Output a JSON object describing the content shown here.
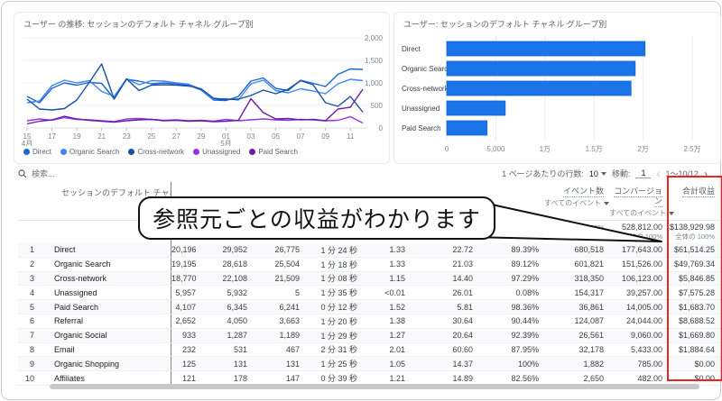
{
  "colors": {
    "bar_blue": "#1a73e8",
    "red_highlight": "#ee2222",
    "series": [
      "#1967d2",
      "#4285f4",
      "#174ea6",
      "#9334e6",
      "#681da8"
    ],
    "grid_line": "#f1f3f4",
    "axis_line": "#e0e0e0"
  },
  "callout": {
    "text": "参照元ごとの収益がわかります"
  },
  "chart_data": [
    {
      "type": "line",
      "title": "ユーザー の推移: セッションのデフォルト チャネル グループ別",
      "ylim": [
        0,
        2000
      ],
      "y_ticks": [
        "0",
        "500",
        "1,000",
        "1,500",
        "2,000"
      ],
      "x_tick_labels": [
        "15",
        "17",
        "19",
        "21",
        "23",
        "25",
        "27",
        "29",
        "01",
        "03",
        "05",
        "07",
        "09",
        "11"
      ],
      "x_tick_sublabels": {
        "0": "4月",
        "8": "5月"
      },
      "legend_position": "bottom",
      "grid": true,
      "series": [
        {
          "name": "Direct",
          "color": "#1967d2",
          "values": [
            700,
            560,
            880,
            1000,
            950,
            1010,
            990,
            650,
            1080,
            1040,
            980,
            1000,
            980,
            950,
            840,
            620,
            610,
            700,
            1040,
            1110,
            880,
            830,
            1060,
            990,
            920,
            1190,
            1310,
            1300
          ]
        },
        {
          "name": "Organic Search",
          "color": "#4285f4",
          "values": [
            560,
            600,
            940,
            1060,
            1000,
            1050,
            810,
            700,
            1090,
            960,
            1050,
            1040,
            1000,
            970,
            860,
            640,
            650,
            620,
            980,
            1060,
            830,
            780,
            870,
            820,
            760,
            980,
            1080,
            1050
          ]
        },
        {
          "name": "Cross-network",
          "color": "#174ea6",
          "values": [
            640,
            420,
            400,
            430,
            620,
            1010,
            1420,
            640,
            1090,
            830,
            950,
            960,
            950,
            930,
            870,
            660,
            630,
            640,
            720,
            840,
            760,
            860,
            1050,
            960,
            560,
            480,
            700,
            350
          ]
        },
        {
          "name": "Unassigned",
          "color": "#9334e6",
          "values": [
            160,
            200,
            170,
            230,
            190,
            180,
            160,
            140,
            200,
            210,
            190,
            170,
            180,
            160,
            170,
            150,
            190,
            160,
            180,
            200,
            180,
            170,
            190,
            180,
            160,
            170,
            250,
            110
          ]
        },
        {
          "name": "Paid Search",
          "color": "#681da8",
          "values": [
            90,
            150,
            180,
            260,
            200,
            170,
            150,
            130,
            160,
            180,
            190,
            160,
            170,
            150,
            160,
            140,
            150,
            170,
            650,
            340,
            200,
            210,
            180,
            190,
            160,
            420,
            460,
            860
          ]
        }
      ]
    },
    {
      "type": "bar",
      "orientation": "horizontal",
      "title": "ユーザー: セッションのデフォルト チャネル グループ別",
      "categories": [
        "Direct",
        "Organic Search",
        "Cross-network",
        "Unassigned",
        "Paid Search"
      ],
      "values": [
        20196,
        19195,
        18770,
        5957,
        4107
      ],
      "xlim": [
        0,
        25000
      ],
      "x_ticks": [
        "0",
        "5,000",
        "1万",
        "1.5万",
        "2万",
        "2.5万"
      ],
      "bar_color": "#1a73e8",
      "grid": true
    }
  ],
  "table": {
    "search_placeholder": "検索...",
    "rows_per_page_label": "1 ページあたりの行数:",
    "rows_per_page_value": "10",
    "goto_label": "移動:",
    "goto_value": "1",
    "range_text": "1〜10/12",
    "header": {
      "dimension": "セッションのデフォルト チャネル グルー(",
      "events": "イベント数",
      "conversions": "コンバージョン",
      "revenue": "合計収益",
      "filter_sub": "すべてのイベント"
    },
    "totals": {
      "events_value": "",
      "events_sub": "全体の 100%",
      "conversions_value": "528,812.00",
      "conversions_sub": "全体の 100%",
      "revenue_value": "$138,929.98",
      "revenue_sub": "全体の 100%"
    },
    "rows": [
      [
        "1",
        "Direct",
        "20,196",
        "29,952",
        "26,775",
        "1 分 24 秒",
        "1.33",
        "22.72",
        "89.39%",
        "680,518",
        "177,643.00",
        "$61,514.25"
      ],
      [
        "2",
        "Organic Search",
        "19,195",
        "28,618",
        "25,504",
        "1 分 18 秒",
        "1.33",
        "21.03",
        "89.12%",
        "601,821",
        "151,526.00",
        "$49,769.34"
      ],
      [
        "3",
        "Cross-network",
        "18,770",
        "22,108",
        "21,509",
        "1 分 08 秒",
        "1.15",
        "14.40",
        "97.29%",
        "318,350",
        "106,123.00",
        "$5,846.85"
      ],
      [
        "4",
        "Unassigned",
        "5,957",
        "5,932",
        "5",
        "1 分 35 秒",
        "<0.01",
        "26.01",
        "0.08%",
        "154,317",
        "39,257.00",
        "$7,575.28"
      ],
      [
        "5",
        "Paid Search",
        "4,107",
        "6,345",
        "6,241",
        "0 分 12 秒",
        "1.52",
        "5.81",
        "98.36%",
        "36,861",
        "14,005.00",
        "$1,683.70"
      ],
      [
        "6",
        "Referral",
        "2,652",
        "4,050",
        "3,663",
        "1 分 20 秒",
        "1.38",
        "30.64",
        "90.44%",
        "124,087",
        "24,044.00",
        "$8,688.52"
      ],
      [
        "7",
        "Organic Social",
        "933",
        "1,287",
        "1,189",
        "1 分 29 秒",
        "1.27",
        "20.64",
        "92.39%",
        "26,561",
        "9,060.00",
        "$1,669.80"
      ],
      [
        "8",
        "Email",
        "232",
        "531",
        "467",
        "2 分 31 秒",
        "2.01",
        "60.60",
        "87.95%",
        "32,178",
        "5,433.00",
        "$1,884.64"
      ],
      [
        "9",
        "Organic Shopping",
        "125",
        "131",
        "131",
        "1 分 25 秒",
        "1.05",
        "14.37",
        "100%",
        "1,882",
        "785.00",
        "$0.00"
      ],
      [
        "10",
        "Affiliates",
        "121",
        "178",
        "147",
        "0 分 39 秒",
        "1.21",
        "14.89",
        "82.56%",
        "2,650",
        "482.00",
        "$0.00"
      ]
    ]
  }
}
